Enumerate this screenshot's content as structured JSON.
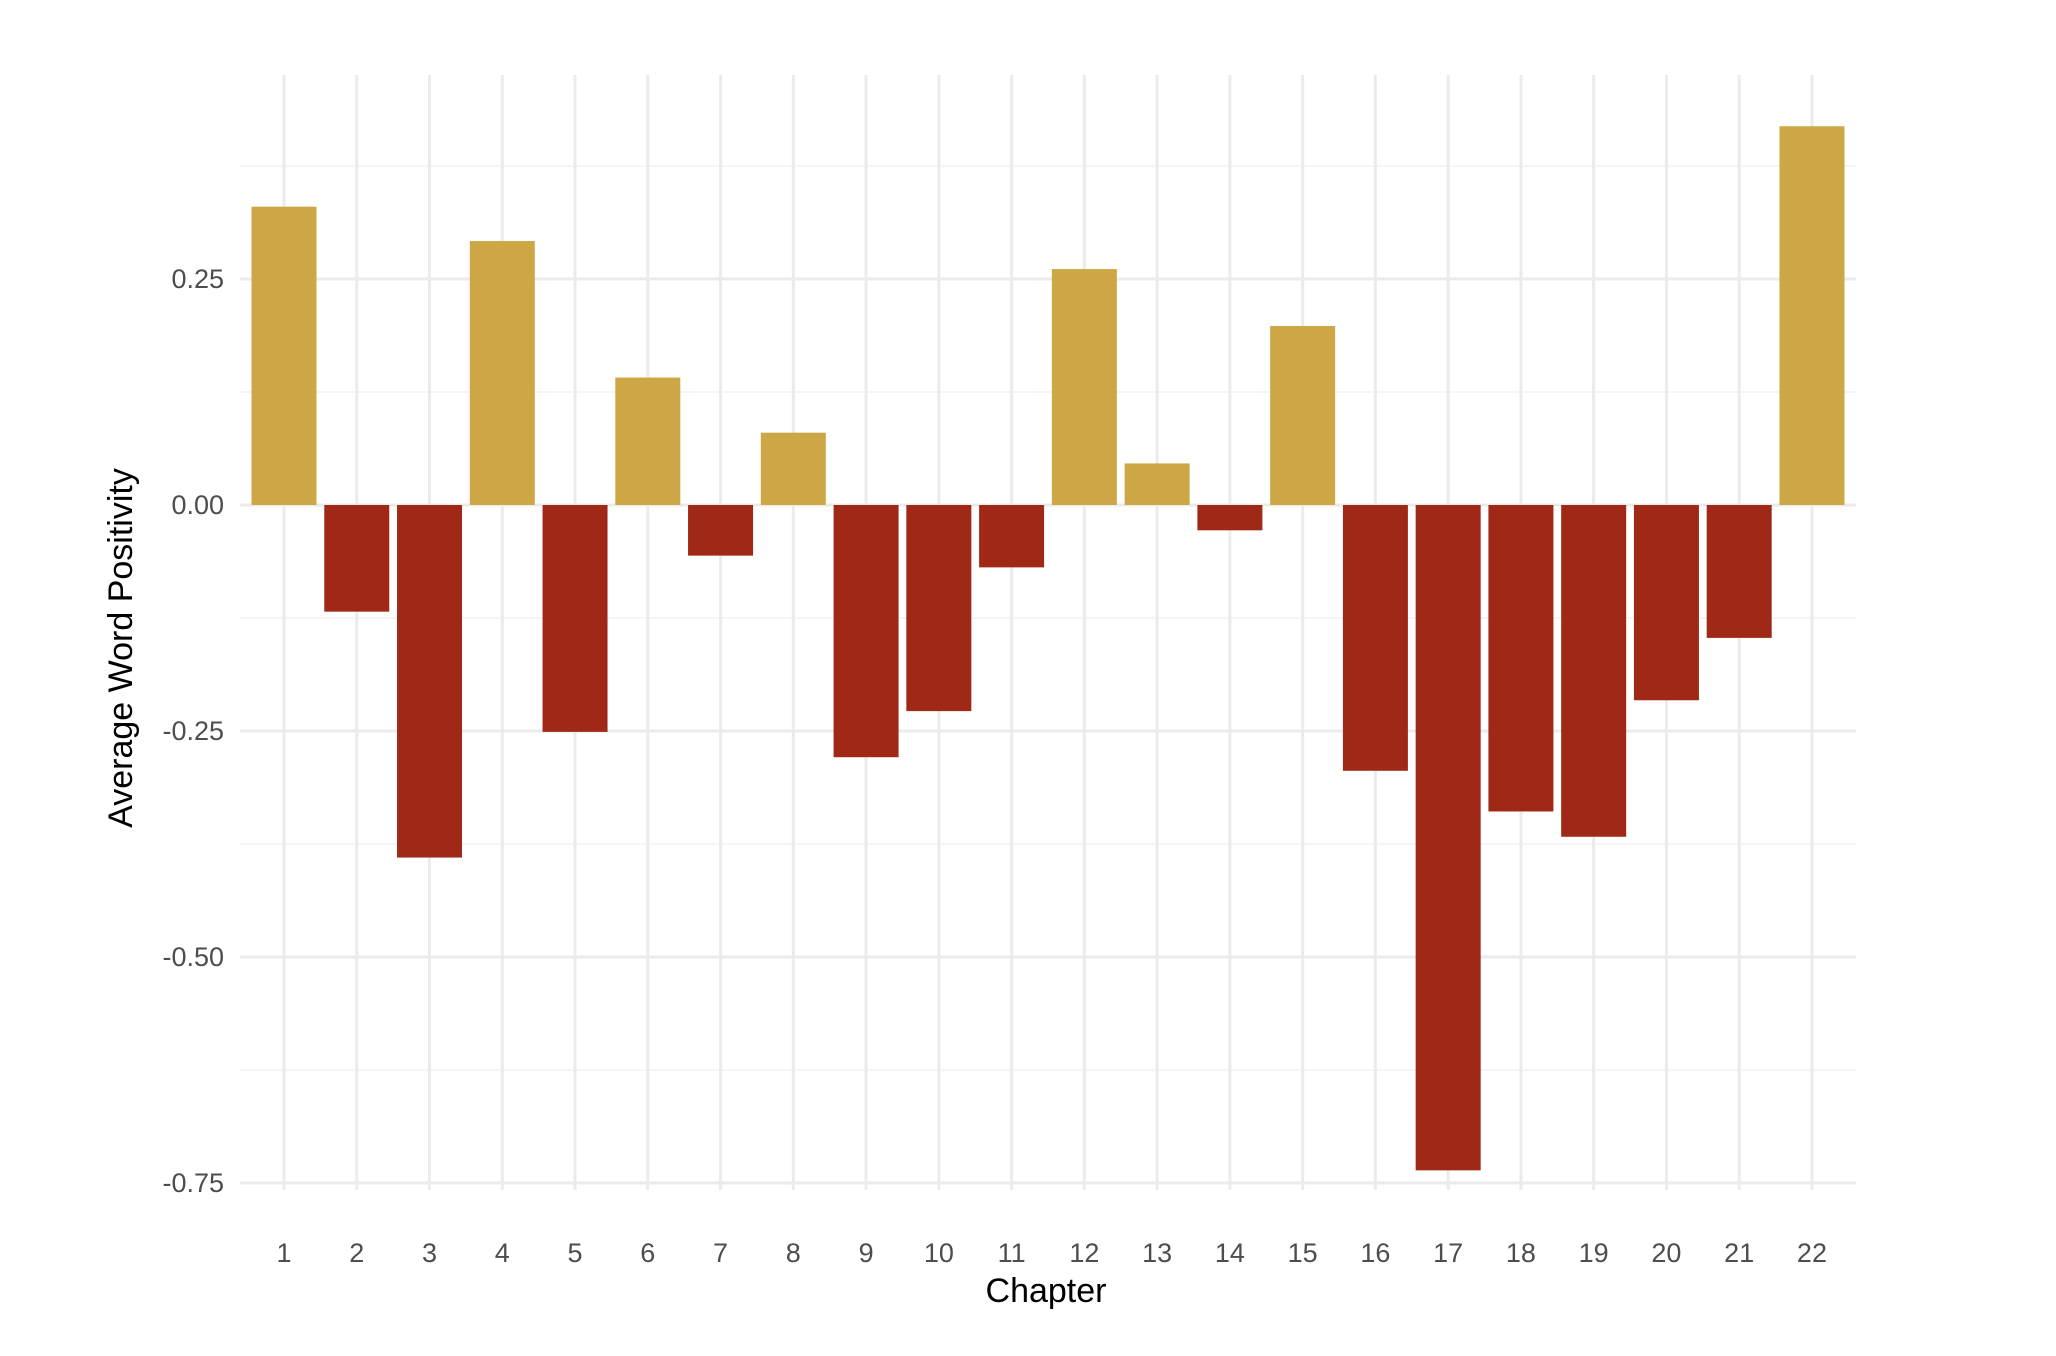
{
  "chart_data": {
    "type": "bar",
    "title": "",
    "xlabel": "Chapter",
    "ylabel": "Average Word Positivity",
    "categories": [
      "1",
      "2",
      "3",
      "4",
      "5",
      "6",
      "7",
      "8",
      "9",
      "10",
      "11",
      "12",
      "13",
      "14",
      "15",
      "16",
      "17",
      "18",
      "19",
      "20",
      "21",
      "22"
    ],
    "values": [
      0.33,
      -0.118,
      -0.39,
      0.292,
      -0.251,
      0.141,
      -0.056,
      0.08,
      -0.279,
      -0.228,
      -0.069,
      0.261,
      0.046,
      -0.028,
      0.198,
      -0.294,
      -0.736,
      -0.339,
      -0.367,
      -0.216,
      -0.147,
      0.419
    ],
    "ylim": [
      -0.78,
      0.48
    ],
    "yticks": [
      0.25,
      0.0,
      -0.25,
      -0.5,
      -0.75
    ],
    "ytick_labels": [
      "0.25",
      "0.00",
      "-0.25",
      "-0.50",
      "-0.75"
    ],
    "grid": true,
    "legend": "none",
    "colors": {
      "positive": "#CDA745",
      "negative": "#A02816",
      "grid_major": "#EBEBEB",
      "grid_minor": "#F5F5F5"
    }
  }
}
